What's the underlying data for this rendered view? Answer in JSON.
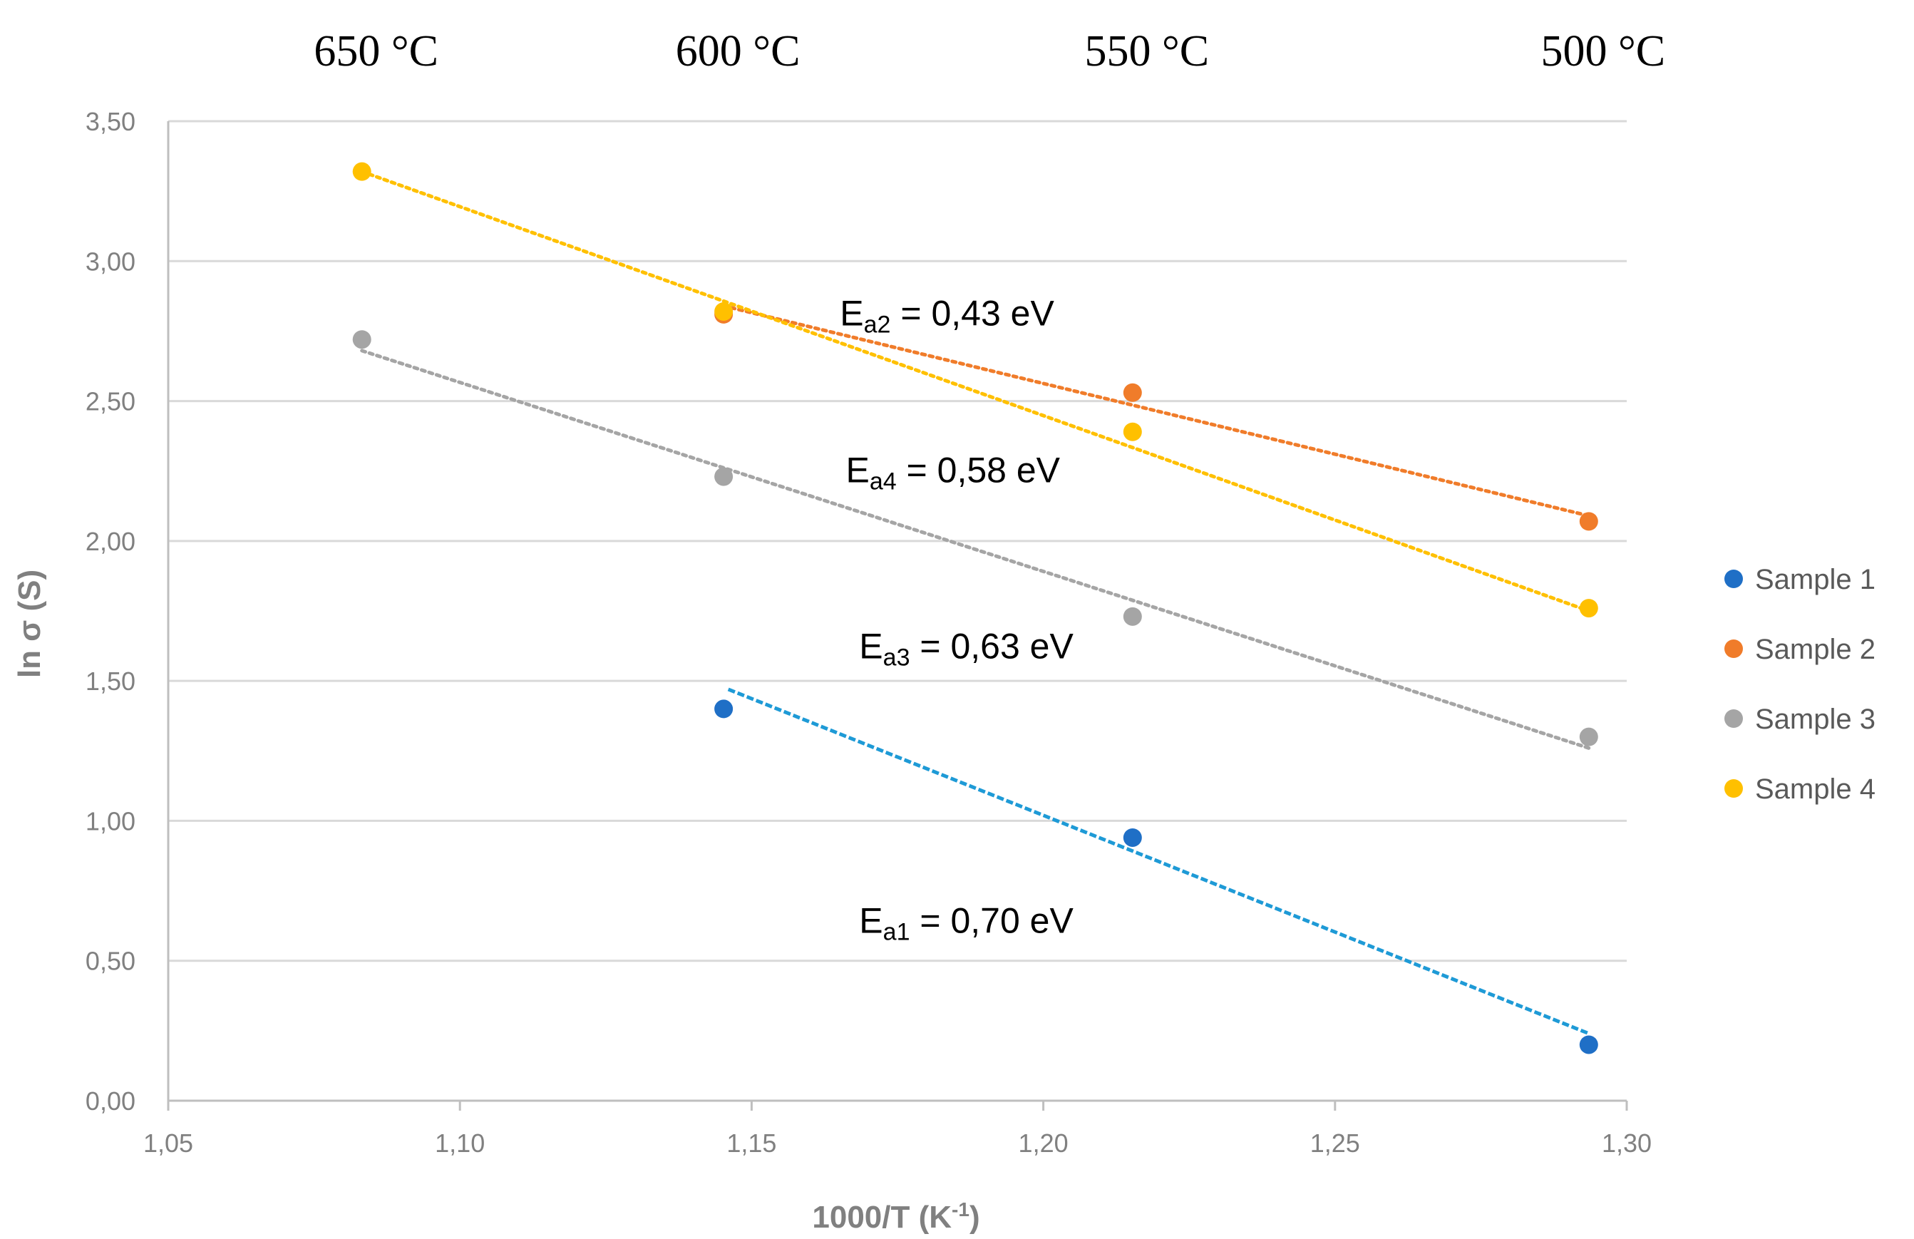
{
  "chart_data": {
    "type": "scatter",
    "title": "",
    "xlabel": "1000/T  (K",
    "xlabel_sup": "-1",
    "xlabel_end": ")",
    "ylabel": "ln σ (S)",
    "xlim": [
      1.05,
      1.3
    ],
    "ylim": [
      0.0,
      3.5
    ],
    "x_ticks": [
      "1,05",
      "1,10",
      "1,15",
      "1,20",
      "1,25",
      "1,30"
    ],
    "x_tick_values": [
      1.05,
      1.1,
      1.15,
      1.2,
      1.25,
      1.3
    ],
    "y_ticks": [
      "0,00",
      "0,50",
      "1,00",
      "1,50",
      "2,00",
      "2,50",
      "3,00",
      "3,50"
    ],
    "y_tick_values": [
      0.0,
      0.5,
      1.0,
      1.5,
      2.0,
      2.5,
      3.0,
      3.5
    ],
    "grid": true,
    "legend_position": "right",
    "top_axis": {
      "labels": [
        "650 °C",
        "600 °C",
        "550 °C",
        "500 °C"
      ],
      "x": [
        1.0832,
        1.1452,
        1.2153,
        1.2935
      ]
    },
    "series": [
      {
        "name": "Sample 1",
        "color": "#1f6fc6",
        "trend_color": "#1e9ad6",
        "trend_style": "dashed",
        "x": [
          1.1452,
          1.2153,
          1.2935
        ],
        "y": [
          1.4,
          0.94,
          0.2
        ],
        "trend": {
          "x": [
            1.146,
            1.2935
          ],
          "y": [
            1.47,
            0.24
          ]
        }
      },
      {
        "name": "Sample 2",
        "color": "#f07c2a",
        "trend_color": "#f07c2a",
        "trend_style": "dotted",
        "x": [
          1.1452,
          1.2153,
          1.2935
        ],
        "y": [
          2.81,
          2.53,
          2.07
        ],
        "trend": {
          "x": [
            1.1452,
            1.2935
          ],
          "y": [
            2.84,
            2.09
          ]
        }
      },
      {
        "name": "Sample 3",
        "color": "#a5a5a5",
        "trend_color": "#a5a5a5",
        "trend_style": "dotted",
        "x": [
          1.0832,
          1.1452,
          1.2153,
          1.2935
        ],
        "y": [
          2.72,
          2.23,
          1.73,
          1.3
        ],
        "trend": {
          "x": [
            1.0832,
            1.2935
          ],
          "y": [
            2.68,
            1.26
          ]
        }
      },
      {
        "name": "Sample 4",
        "color": "#ffc000",
        "trend_color": "#ffc000",
        "trend_style": "dotted",
        "x": [
          1.0832,
          1.1452,
          1.2153,
          1.2935
        ],
        "y": [
          3.32,
          2.82,
          2.39,
          1.76
        ],
        "trend": {
          "x": [
            1.0832,
            1.2935
          ],
          "y": [
            3.32,
            1.75
          ]
        }
      }
    ],
    "annotations": [
      {
        "main": "E",
        "sub": "a2",
        "rest": " = 0,43 eV",
        "x": 1.1835,
        "y": 2.77
      },
      {
        "main": "E",
        "sub": "a4",
        "rest": " = 0,58 eV",
        "x": 1.1845,
        "y": 2.21
      },
      {
        "main": "E",
        "sub": "a3",
        "rest": " = 0,63 eV",
        "x": 1.1868,
        "y": 1.58
      },
      {
        "main": "E",
        "sub": "a1",
        "rest": " = 0,70 eV",
        "x": 1.1868,
        "y": 0.6
      }
    ]
  }
}
